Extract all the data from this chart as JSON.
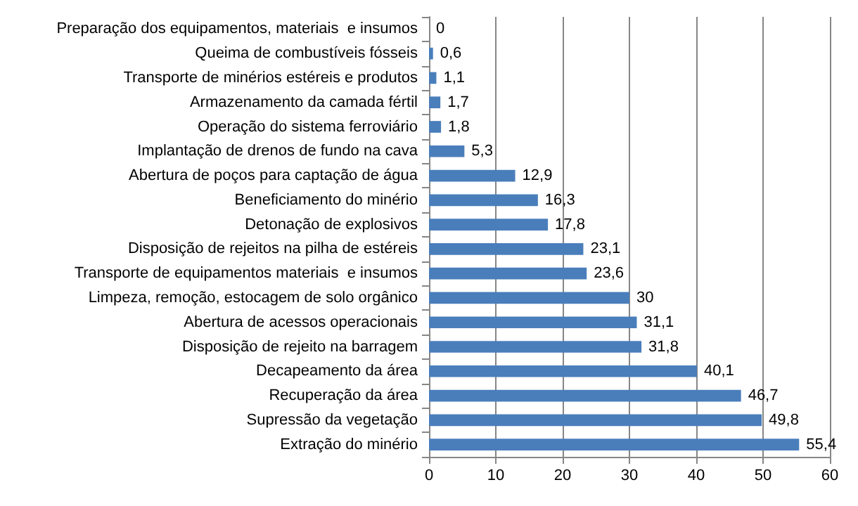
{
  "chart_data": {
    "type": "bar",
    "orientation": "horizontal",
    "categories": [
      "Preparação dos equipamentos, materiais  e insumos",
      "Queima de combustíveis fósseis",
      "Transporte de minérios estéreis e produtos",
      "Armazenamento da camada fértil",
      "Operação do sistema ferroviário",
      "Implantação de drenos de fundo na cava",
      "Abertura de poços para captação de água",
      "Beneficiamento do minério",
      "Detonação de explosivos",
      "Disposição de rejeitos na pilha de estéreis",
      "Transporte de equipamentos materiais  e insumos",
      "Limpeza, remoção, estocagem de solo orgânico",
      "Abertura de acessos operacionais",
      "Disposição de rejeito na barragem",
      "Decapeamento da área",
      "Recuperação da área",
      "Supressão da vegetação",
      "Extração do minério"
    ],
    "values": [
      0,
      0.6,
      1.1,
      1.7,
      1.8,
      5.3,
      12.9,
      16.3,
      17.8,
      23.1,
      23.6,
      30,
      31.1,
      31.8,
      40.1,
      46.7,
      49.8,
      55.4
    ],
    "value_labels": [
      "0",
      "0,6",
      "1,1",
      "1,7",
      "1,8",
      "5,3",
      "12,9",
      "16,3",
      "17,8",
      "23,1",
      "23,6",
      "30",
      "31,1",
      "31,8",
      "40,1",
      "46,7",
      "49,8",
      "55,4"
    ],
    "color": "#4a7ebb",
    "xlim": [
      0,
      60
    ],
    "xticks": [
      0,
      10,
      20,
      30,
      40,
      50,
      60
    ],
    "grid": "x"
  }
}
